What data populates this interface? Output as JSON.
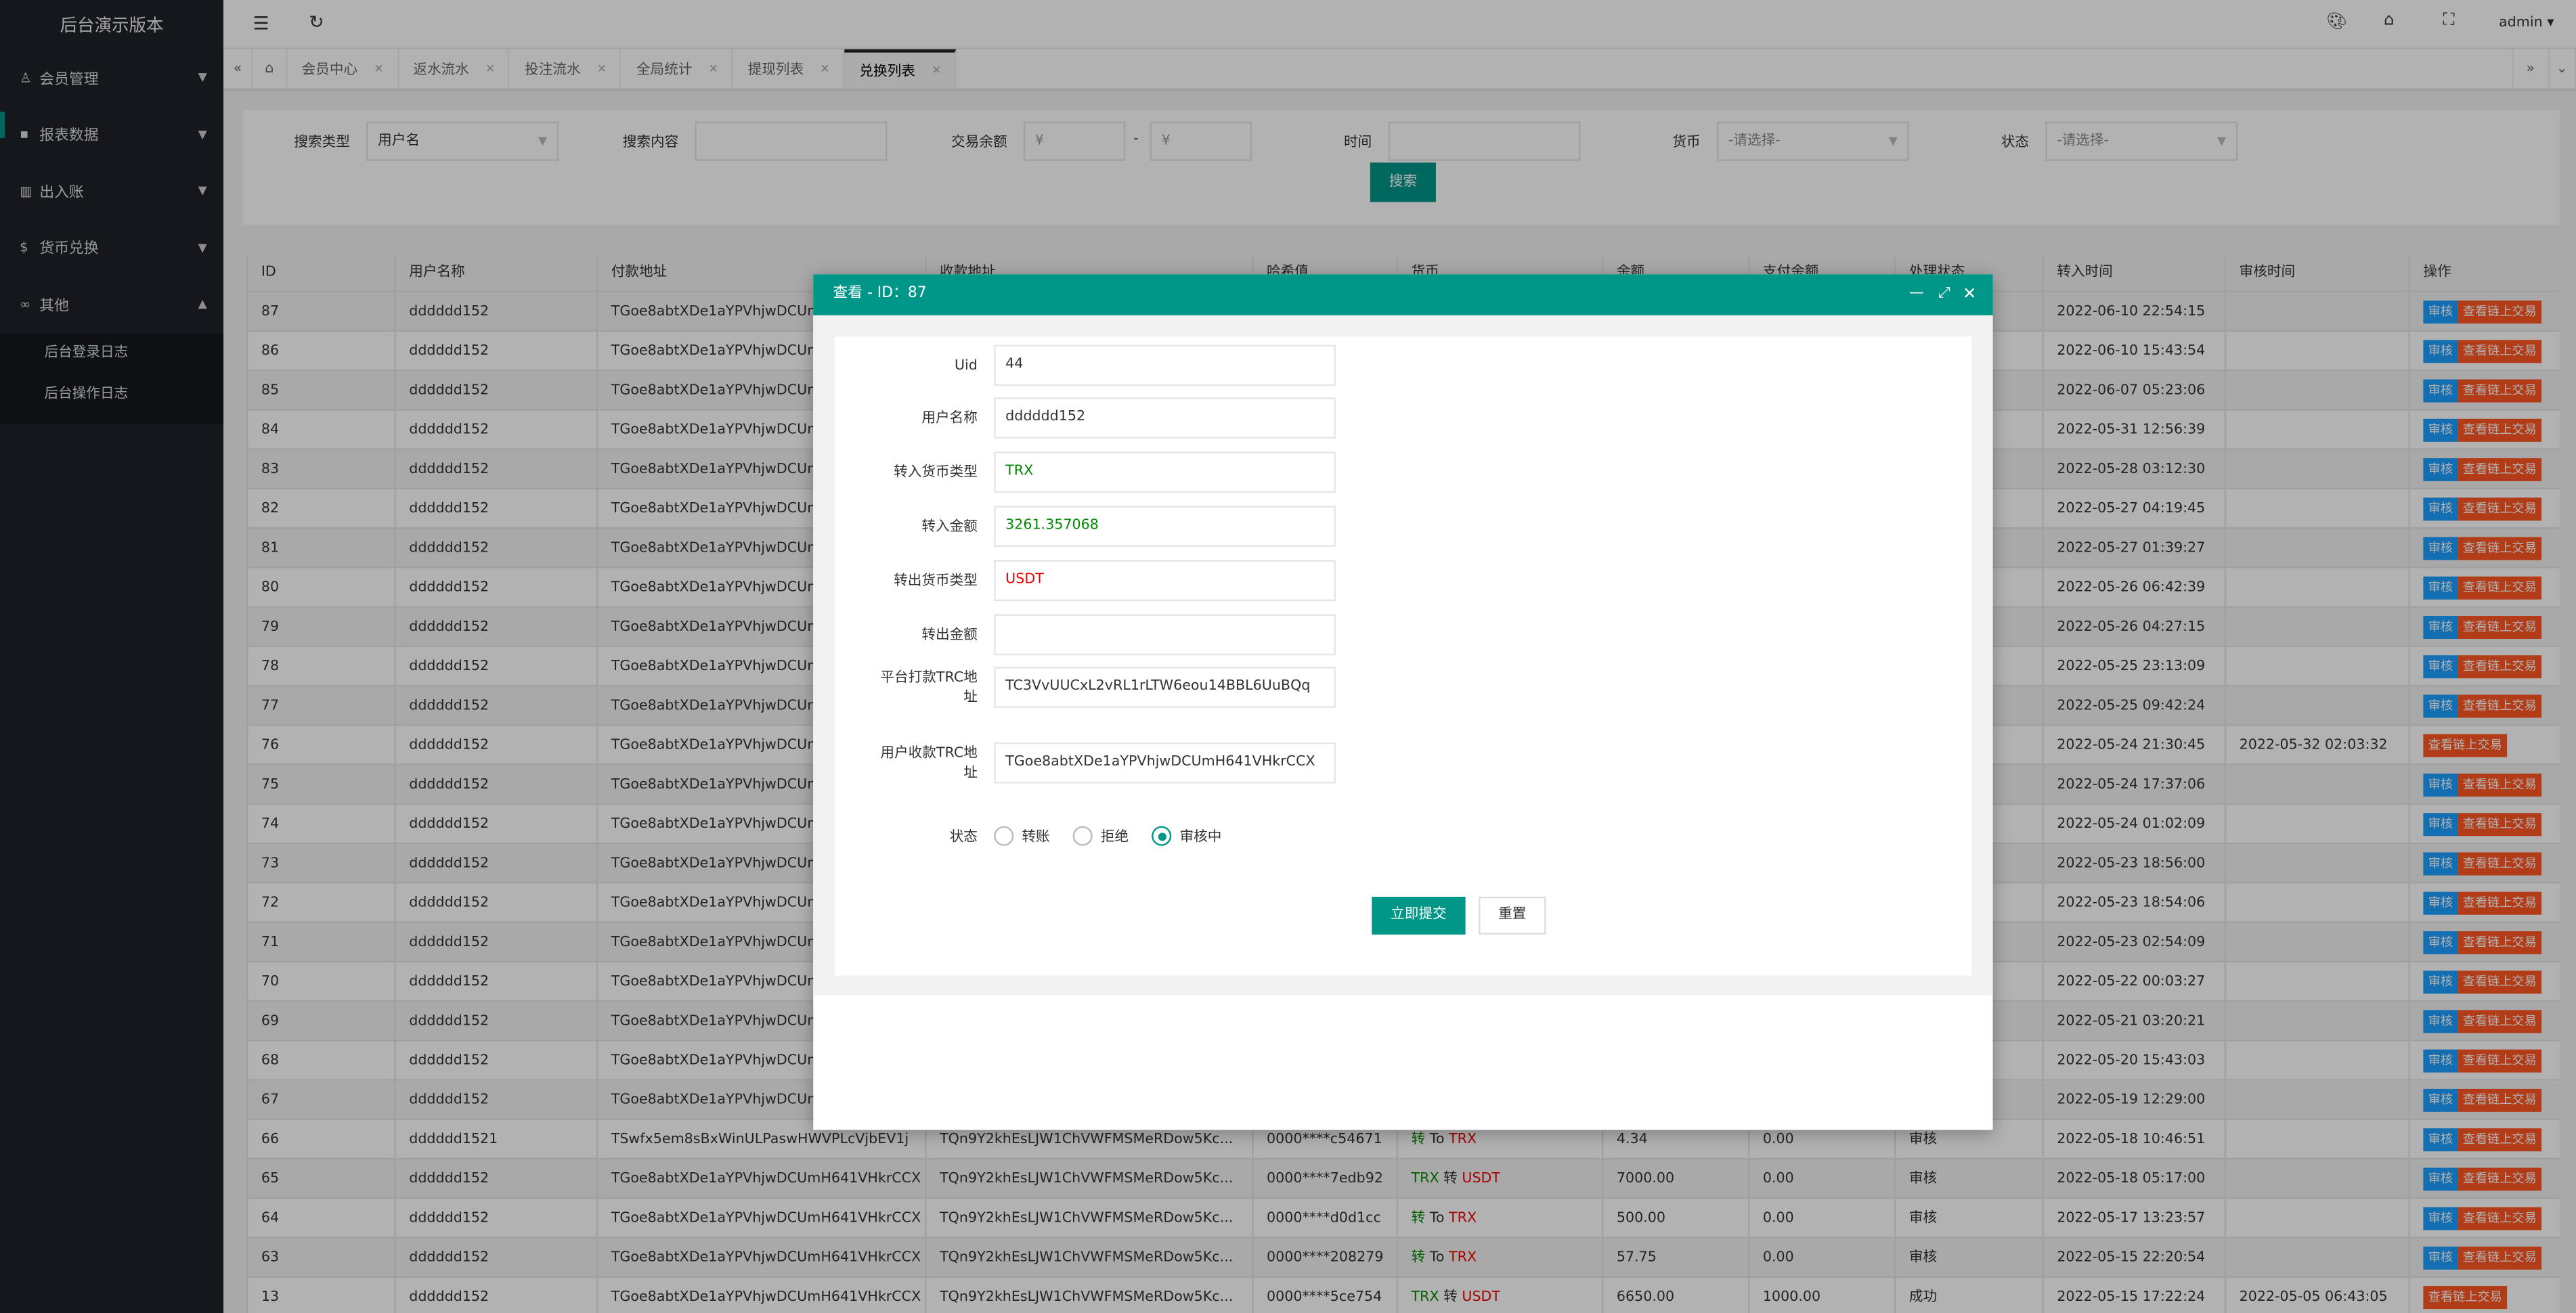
{
  "app_title": "后台演示版本",
  "sidebar": {
    "items": [
      {
        "label": "会员管理",
        "icon": "user-icon"
      },
      {
        "label": "报表数据",
        "icon": "report-icon"
      },
      {
        "label": "出入账",
        "icon": "ledger-icon"
      },
      {
        "label": "货币兑换",
        "icon": "currency-icon"
      },
      {
        "label": "其他",
        "icon": "link-icon"
      }
    ],
    "sub_items": [
      "后台登录日志",
      "后台操作日志"
    ]
  },
  "header": {
    "user": "admin",
    "icons": [
      "palette-icon",
      "tag-icon",
      "fullscreen-icon"
    ]
  },
  "tabs": [
    {
      "label": "会员中心"
    },
    {
      "label": "返水流水"
    },
    {
      "label": "投注流水"
    },
    {
      "label": "全局统计"
    },
    {
      "label": "提现列表"
    },
    {
      "label": "兑换列表",
      "active": true
    }
  ],
  "search": {
    "type_label": "搜索类型",
    "type_value": "用户名",
    "content_label": "搜索内容",
    "content_value": "",
    "amount_label": "交易余额",
    "amount_min_placeholder": "¥",
    "amount_sep": "-",
    "amount_max_placeholder": "¥",
    "time_label": "时间",
    "time_value": "",
    "currency_label": "货币",
    "currency_value": "-请选择-",
    "status_label": "状态",
    "status_value": "-请选择-",
    "button": "搜索"
  },
  "table": {
    "headers": [
      "ID",
      "用户名称",
      "付款地址",
      "收款地址",
      "哈希值",
      "货币",
      "余额",
      "支付余额",
      "处理状态",
      "转入时间",
      "审核时间",
      "操作"
    ],
    "audit_label": "审核",
    "view_label": "查看链上交易",
    "rows": [
      {
        "id": "87",
        "user": "dddddd152",
        "pay": "TGoe8abtXDe1aYPVhjwDCUm",
        "in_time": "2022-06-10 22:54:15",
        "audit_time": "",
        "audit_btn": true
      },
      {
        "id": "86",
        "user": "dddddd152",
        "pay": "TGoe8abtXDe1aYPVhjwDCUm",
        "in_time": "2022-06-10 15:43:54",
        "audit_time": "",
        "audit_btn": true
      },
      {
        "id": "85",
        "user": "dddddd152",
        "pay": "TGoe8abtXDe1aYPVhjwDCUm",
        "in_time": "2022-06-07 05:23:06",
        "audit_time": "",
        "audit_btn": true
      },
      {
        "id": "84",
        "user": "dddddd152",
        "pay": "TGoe8abtXDe1aYPVhjwDCUm",
        "in_time": "2022-05-31 12:56:39",
        "audit_time": "",
        "audit_btn": true
      },
      {
        "id": "83",
        "user": "dddddd152",
        "pay": "TGoe8abtXDe1aYPVhjwDCUm",
        "in_time": "2022-05-28 03:12:30",
        "audit_time": "",
        "audit_btn": true
      },
      {
        "id": "82",
        "user": "dddddd152",
        "pay": "TGoe8abtXDe1aYPVhjwDCUm",
        "in_time": "2022-05-27 04:19:45",
        "audit_time": "",
        "audit_btn": true
      },
      {
        "id": "81",
        "user": "dddddd152",
        "pay": "TGoe8abtXDe1aYPVhjwDCUm",
        "in_time": "2022-05-27 01:39:27",
        "audit_time": "",
        "audit_btn": true
      },
      {
        "id": "80",
        "user": "dddddd152",
        "pay": "TGoe8abtXDe1aYPVhjwDCUm",
        "in_time": "2022-05-26 06:42:39",
        "audit_time": "",
        "audit_btn": true
      },
      {
        "id": "79",
        "user": "dddddd152",
        "pay": "TGoe8abtXDe1aYPVhjwDCUm",
        "in_time": "2022-05-26 04:27:15",
        "audit_time": "",
        "audit_btn": true
      },
      {
        "id": "78",
        "user": "dddddd152",
        "pay": "TGoe8abtXDe1aYPVhjwDCUm",
        "in_time": "2022-05-25 23:13:09",
        "audit_time": "",
        "audit_btn": true
      },
      {
        "id": "77",
        "user": "dddddd152",
        "pay": "TGoe8abtXDe1aYPVhjwDCUm",
        "in_time": "2022-05-25 09:42:24",
        "audit_time": "",
        "audit_btn": true
      },
      {
        "id": "76",
        "user": "dddddd152",
        "pay": "TGoe8abtXDe1aYPVhjwDCUm",
        "in_time": "2022-05-24 21:30:45",
        "audit_time": "2022-05-32 02:03:32",
        "audit_btn": false
      },
      {
        "id": "75",
        "user": "dddddd152",
        "pay": "TGoe8abtXDe1aYPVhjwDCUm",
        "in_time": "2022-05-24 17:37:06",
        "audit_time": "",
        "audit_btn": true
      },
      {
        "id": "74",
        "user": "dddddd152",
        "pay": "TGoe8abtXDe1aYPVhjwDCUm",
        "in_time": "2022-05-24 01:02:09",
        "audit_time": "",
        "audit_btn": true
      },
      {
        "id": "73",
        "user": "dddddd152",
        "pay": "TGoe8abtXDe1aYPVhjwDCUm",
        "in_time": "2022-05-23 18:56:00",
        "audit_time": "",
        "audit_btn": true
      },
      {
        "id": "72",
        "user": "dddddd152",
        "pay": "TGoe8abtXDe1aYPVhjwDCUm",
        "in_time": "2022-05-23 18:54:06",
        "audit_time": "",
        "audit_btn": true
      },
      {
        "id": "71",
        "user": "dddddd152",
        "pay": "TGoe8abtXDe1aYPVhjwDCUm",
        "in_time": "2022-05-23 02:54:09",
        "audit_time": "",
        "audit_btn": true
      },
      {
        "id": "70",
        "user": "dddddd152",
        "pay": "TGoe8abtXDe1aYPVhjwDCUm",
        "in_time": "2022-05-22 00:03:27",
        "audit_time": "",
        "audit_btn": true
      },
      {
        "id": "69",
        "user": "dddddd152",
        "pay": "TGoe8abtXDe1aYPVhjwDCUm",
        "in_time": "2022-05-21 03:20:21",
        "audit_time": "",
        "audit_btn": true
      },
      {
        "id": "68",
        "user": "dddddd152",
        "pay": "TGoe8abtXDe1aYPVhjwDCUm",
        "in_time": "2022-05-20 15:43:03",
        "audit_time": "",
        "audit_btn": true
      },
      {
        "id": "67",
        "user": "dddddd152",
        "pay": "TGoe8abtXDe1aYPVhjwDCUm",
        "in_time": "2022-05-19 12:29:00",
        "audit_time": "",
        "audit_btn": true
      },
      {
        "id": "66",
        "user": "dddddd1521",
        "pay": "TSwfx5em8sBxWinULPaswHWVPLcVjbEV1j",
        "recv": "TQn9Y2khEsLJW1ChVWFMSMeRDow5Kc...",
        "hash": "0000****c54671",
        "cur_a": "转",
        "cur_m": " To ",
        "cur_b": "TRX",
        "cur_a_color": "#008800",
        "cur_b_color": "#ee0000",
        "balance": "4.34",
        "paid": "0.00",
        "status": "审核",
        "in_time": "2022-05-18 10:46:51",
        "audit_time": "",
        "audit_btn": true
      },
      {
        "id": "65",
        "user": "dddddd152",
        "pay": "TGoe8abtXDe1aYPVhjwDCUmH641VHkrCCX",
        "recv": "TQn9Y2khEsLJW1ChVWFMSMeRDow5Kc...",
        "hash": "0000****7edb92",
        "cur_a": "TRX",
        "cur_m": " 转 ",
        "cur_b": "USDT",
        "cur_a_color": "#008800",
        "cur_b_color": "#ee0000",
        "balance": "7000.00",
        "paid": "0.00",
        "status": "审核",
        "in_time": "2022-05-18 05:17:00",
        "audit_time": "",
        "audit_btn": true
      },
      {
        "id": "64",
        "user": "dddddd152",
        "pay": "TGoe8abtXDe1aYPVhjwDCUmH641VHkrCCX",
        "recv": "TQn9Y2khEsLJW1ChVWFMSMeRDow5Kc...",
        "hash": "0000****d0d1cc",
        "cur_a": "转",
        "cur_m": " To ",
        "cur_b": "TRX",
        "cur_a_color": "#008800",
        "cur_b_color": "#ee0000",
        "balance": "500.00",
        "paid": "0.00",
        "status": "审核",
        "in_time": "2022-05-17 13:23:57",
        "audit_time": "",
        "audit_btn": true
      },
      {
        "id": "63",
        "user": "dddddd152",
        "pay": "TGoe8abtXDe1aYPVhjwDCUmH641VHkrCCX",
        "recv": "TQn9Y2khEsLJW1ChVWFMSMeRDow5Kc...",
        "hash": "0000****208279",
        "cur_a": "转",
        "cur_m": " To ",
        "cur_b": "TRX",
        "cur_a_color": "#008800",
        "cur_b_color": "#ee0000",
        "balance": "57.75",
        "paid": "0.00",
        "status": "审核",
        "in_time": "2022-05-15 22:20:54",
        "audit_time": "",
        "audit_btn": true
      },
      {
        "id": "13",
        "user": "dddddd152",
        "pay": "TGoe8abtXDe1aYPVhjwDCUmH641VHkrCCX",
        "recv": "TQn9Y2khEsLJW1ChVWFMSMeRDow5Kc...",
        "hash": "0000****5ce754",
        "cur_a": "TRX",
        "cur_m": " 转 ",
        "cur_b": "USDT",
        "cur_a_color": "#008800",
        "cur_b_color": "#ee0000",
        "balance": "6650.00",
        "paid": "1000.00",
        "status": "成功",
        "in_time": "2022-05-15 17:22:24",
        "audit_time": "2022-05-05 06:43:05",
        "audit_btn": false
      }
    ]
  },
  "modal": {
    "title": "查看 - ID：87",
    "header_color": "#009688",
    "fields": [
      {
        "label": "Uid",
        "value": "44",
        "color": "#333333"
      },
      {
        "label": "用户名称",
        "value": "dddddd152",
        "color": "#333333"
      },
      {
        "label": "转入货币类型",
        "value": "TRX",
        "color": "#008800"
      },
      {
        "label": "转入金额",
        "value": "3261.357068",
        "color": "#008800"
      },
      {
        "label": "转出货币类型",
        "value": "USDT",
        "color": "#ee0000"
      },
      {
        "label": "转出金额",
        "value": "",
        "color": "#333333"
      },
      {
        "label": "平台打款TRC地址",
        "value": "TC3VvUUCxL2vRL1rLTW6eou14BBL6UuBQq",
        "color": "#333333"
      },
      {
        "label": "用户收款TRC地址",
        "value": "TGoe8abtXDe1aYPVhjwDCUmH641VHkrCCX",
        "color": "#333333"
      }
    ],
    "status_label": "状态",
    "status_options": [
      "转账",
      "拒绝",
      "审核中"
    ],
    "status_selected": "审核中",
    "submit": "立即提交",
    "reset": "重置"
  }
}
